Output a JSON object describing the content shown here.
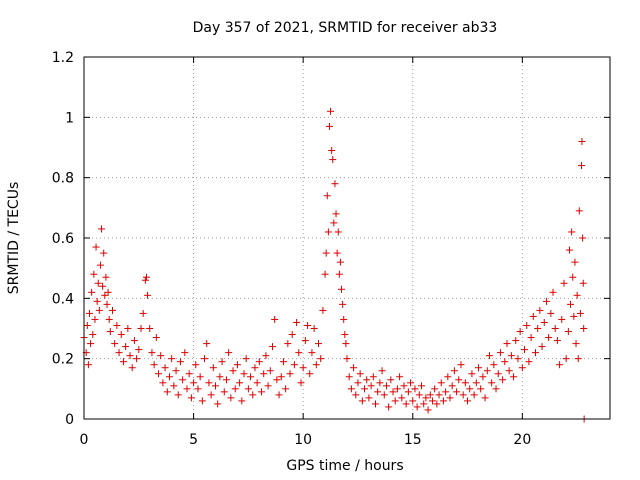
{
  "chart_data": {
    "type": "scatter",
    "title": "Day 357 of 2021, SRMTID for receiver ab33",
    "xlabel": "GPS time / hours",
    "ylabel": "SRMTID / TECUs",
    "xlim": [
      0,
      24
    ],
    "ylim": [
      0,
      1.2
    ],
    "xticks": [
      0,
      5,
      10,
      15,
      20
    ],
    "xtick_labels": [
      "0",
      "5",
      "10",
      "15",
      "20"
    ],
    "yticks": [
      0,
      0.2,
      0.4,
      0.6,
      0.8,
      1.0,
      1.2
    ],
    "ytick_labels": [
      "0",
      "0.2",
      "0.4",
      "0.6",
      "0.8",
      "1",
      "1.2"
    ],
    "grid": true,
    "marker": "+",
    "color": "#e00000",
    "series": [
      {
        "name": "SRMTID",
        "points": [
          [
            0.0,
            0.27
          ],
          [
            0.1,
            0.22
          ],
          [
            0.15,
            0.31
          ],
          [
            0.2,
            0.18
          ],
          [
            0.25,
            0.35
          ],
          [
            0.3,
            0.25
          ],
          [
            0.35,
            0.42
          ],
          [
            0.4,
            0.28
          ],
          [
            0.45,
            0.48
          ],
          [
            0.5,
            0.33
          ],
          [
            0.55,
            0.57
          ],
          [
            0.6,
            0.39
          ],
          [
            0.65,
            0.45
          ],
          [
            0.7,
            0.36
          ],
          [
            0.75,
            0.51
          ],
          [
            0.8,
            0.63
          ],
          [
            0.85,
            0.44
          ],
          [
            0.9,
            0.55
          ],
          [
            0.95,
            0.41
          ],
          [
            1.0,
            0.47
          ],
          [
            1.05,
            0.38
          ],
          [
            1.1,
            0.42
          ],
          [
            1.15,
            0.33
          ],
          [
            1.2,
            0.29
          ],
          [
            1.3,
            0.36
          ],
          [
            1.4,
            0.25
          ],
          [
            1.5,
            0.31
          ],
          [
            1.6,
            0.22
          ],
          [
            1.7,
            0.28
          ],
          [
            1.8,
            0.19
          ],
          [
            1.9,
            0.24
          ],
          [
            2.0,
            0.3
          ],
          [
            2.1,
            0.21
          ],
          [
            2.2,
            0.17
          ],
          [
            2.3,
            0.26
          ],
          [
            2.4,
            0.2
          ],
          [
            2.5,
            0.23
          ],
          [
            2.6,
            0.3
          ],
          [
            2.7,
            0.35
          ],
          [
            2.8,
            0.46
          ],
          [
            2.85,
            0.47
          ],
          [
            2.9,
            0.41
          ],
          [
            3.0,
            0.3
          ],
          [
            3.1,
            0.22
          ],
          [
            3.2,
            0.18
          ],
          [
            3.3,
            0.27
          ],
          [
            3.4,
            0.15
          ],
          [
            3.5,
            0.21
          ],
          [
            3.6,
            0.12
          ],
          [
            3.7,
            0.17
          ],
          [
            3.8,
            0.09
          ],
          [
            3.9,
            0.14
          ],
          [
            4.0,
            0.2
          ],
          [
            4.1,
            0.11
          ],
          [
            4.2,
            0.16
          ],
          [
            4.3,
            0.08
          ],
          [
            4.4,
            0.19
          ],
          [
            4.5,
            0.13
          ],
          [
            4.6,
            0.22
          ],
          [
            4.7,
            0.1
          ],
          [
            4.8,
            0.15
          ],
          [
            4.9,
            0.07
          ],
          [
            5.0,
            0.12
          ],
          [
            5.1,
            0.18
          ],
          [
            5.2,
            0.1
          ],
          [
            5.3,
            0.14
          ],
          [
            5.4,
            0.06
          ],
          [
            5.5,
            0.2
          ],
          [
            5.6,
            0.25
          ],
          [
            5.7,
            0.12
          ],
          [
            5.8,
            0.08
          ],
          [
            5.9,
            0.17
          ],
          [
            6.0,
            0.11
          ],
          [
            6.1,
            0.05
          ],
          [
            6.2,
            0.14
          ],
          [
            6.3,
            0.19
          ],
          [
            6.4,
            0.09
          ],
          [
            6.5,
            0.13
          ],
          [
            6.6,
            0.22
          ],
          [
            6.7,
            0.07
          ],
          [
            6.8,
            0.16
          ],
          [
            6.9,
            0.1
          ],
          [
            7.0,
            0.18
          ],
          [
            7.1,
            0.12
          ],
          [
            7.2,
            0.06
          ],
          [
            7.3,
            0.15
          ],
          [
            7.4,
            0.2
          ],
          [
            7.5,
            0.1
          ],
          [
            7.6,
            0.14
          ],
          [
            7.7,
            0.08
          ],
          [
            7.8,
            0.17
          ],
          [
            7.9,
            0.12
          ],
          [
            8.0,
            0.19
          ],
          [
            8.1,
            0.09
          ],
          [
            8.2,
            0.15
          ],
          [
            8.3,
            0.21
          ],
          [
            8.4,
            0.11
          ],
          [
            8.5,
            0.16
          ],
          [
            8.6,
            0.24
          ],
          [
            8.7,
            0.33
          ],
          [
            8.8,
            0.13
          ],
          [
            8.9,
            0.08
          ],
          [
            9.0,
            0.14
          ],
          [
            9.1,
            0.19
          ],
          [
            9.2,
            0.1
          ],
          [
            9.3,
            0.25
          ],
          [
            9.4,
            0.15
          ],
          [
            9.5,
            0.28
          ],
          [
            9.6,
            0.18
          ],
          [
            9.7,
            0.32
          ],
          [
            9.8,
            0.22
          ],
          [
            9.9,
            0.12
          ],
          [
            10.0,
            0.17
          ],
          [
            10.1,
            0.26
          ],
          [
            10.2,
            0.31
          ],
          [
            10.3,
            0.15
          ],
          [
            10.4,
            0.22
          ],
          [
            10.5,
            0.3
          ],
          [
            10.6,
            0.18
          ],
          [
            10.7,
            0.25
          ],
          [
            10.8,
            0.2
          ],
          [
            10.9,
            0.36
          ],
          [
            11.0,
            0.48
          ],
          [
            11.05,
            0.55
          ],
          [
            11.1,
            0.74
          ],
          [
            11.15,
            0.62
          ],
          [
            11.2,
            0.97
          ],
          [
            11.25,
            1.02
          ],
          [
            11.3,
            0.89
          ],
          [
            11.35,
            0.86
          ],
          [
            11.4,
            0.65
          ],
          [
            11.45,
            0.78
          ],
          [
            11.5,
            0.68
          ],
          [
            11.55,
            0.55
          ],
          [
            11.6,
            0.62
          ],
          [
            11.65,
            0.48
          ],
          [
            11.7,
            0.52
          ],
          [
            11.75,
            0.43
          ],
          [
            11.8,
            0.38
          ],
          [
            11.85,
            0.33
          ],
          [
            11.9,
            0.28
          ],
          [
            11.95,
            0.25
          ],
          [
            12.0,
            0.2
          ],
          [
            12.1,
            0.14
          ],
          [
            12.2,
            0.1
          ],
          [
            12.3,
            0.17
          ],
          [
            12.4,
            0.08
          ],
          [
            12.5,
            0.12
          ],
          [
            12.6,
            0.15
          ],
          [
            12.7,
            0.06
          ],
          [
            12.8,
            0.1
          ],
          [
            12.9,
            0.13
          ],
          [
            13.0,
            0.07
          ],
          [
            13.1,
            0.11
          ],
          [
            13.2,
            0.14
          ],
          [
            13.3,
            0.05
          ],
          [
            13.4,
            0.09
          ],
          [
            13.5,
            0.12
          ],
          [
            13.6,
            0.16
          ],
          [
            13.7,
            0.08
          ],
          [
            13.8,
            0.11
          ],
          [
            13.9,
            0.04
          ],
          [
            14.0,
            0.13
          ],
          [
            14.1,
            0.09
          ],
          [
            14.2,
            0.06
          ],
          [
            14.3,
            0.1
          ],
          [
            14.4,
            0.14
          ],
          [
            14.5,
            0.07
          ],
          [
            14.6,
            0.11
          ],
          [
            14.7,
            0.05
          ],
          [
            14.8,
            0.09
          ],
          [
            14.9,
            0.12
          ],
          [
            15.0,
            0.06
          ],
          [
            15.1,
            0.1
          ],
          [
            15.2,
            0.04
          ],
          [
            15.3,
            0.08
          ],
          [
            15.4,
            0.11
          ],
          [
            15.5,
            0.05
          ],
          [
            15.6,
            0.07
          ],
          [
            15.7,
            0.03
          ],
          [
            15.8,
            0.08
          ],
          [
            15.9,
            0.06
          ],
          [
            16.0,
            0.1
          ],
          [
            16.1,
            0.05
          ],
          [
            16.2,
            0.08
          ],
          [
            16.3,
            0.12
          ],
          [
            16.4,
            0.06
          ],
          [
            16.5,
            0.09
          ],
          [
            16.6,
            0.14
          ],
          [
            16.7,
            0.07
          ],
          [
            16.8,
            0.11
          ],
          [
            16.9,
            0.16
          ],
          [
            17.0,
            0.09
          ],
          [
            17.1,
            0.13
          ],
          [
            17.2,
            0.18
          ],
          [
            17.3,
            0.08
          ],
          [
            17.4,
            0.12
          ],
          [
            17.5,
            0.06
          ],
          [
            17.6,
            0.1
          ],
          [
            17.7,
            0.15
          ],
          [
            17.8,
            0.08
          ],
          [
            17.9,
            0.12
          ],
          [
            18.0,
            0.17
          ],
          [
            18.1,
            0.1
          ],
          [
            18.2,
            0.14
          ],
          [
            18.3,
            0.07
          ],
          [
            18.4,
            0.16
          ],
          [
            18.5,
            0.21
          ],
          [
            18.6,
            0.12
          ],
          [
            18.7,
            0.18
          ],
          [
            18.8,
            0.1
          ],
          [
            18.9,
            0.15
          ],
          [
            19.0,
            0.22
          ],
          [
            19.1,
            0.13
          ],
          [
            19.2,
            0.19
          ],
          [
            19.3,
            0.25
          ],
          [
            19.4,
            0.16
          ],
          [
            19.5,
            0.21
          ],
          [
            19.6,
            0.14
          ],
          [
            19.7,
            0.26
          ],
          [
            19.8,
            0.2
          ],
          [
            19.9,
            0.29
          ],
          [
            20.0,
            0.17
          ],
          [
            20.1,
            0.23
          ],
          [
            20.2,
            0.31
          ],
          [
            20.3,
            0.19
          ],
          [
            20.4,
            0.27
          ],
          [
            20.5,
            0.34
          ],
          [
            20.6,
            0.22
          ],
          [
            20.7,
            0.3
          ],
          [
            20.8,
            0.36
          ],
          [
            20.9,
            0.24
          ],
          [
            21.0,
            0.32
          ],
          [
            21.1,
            0.39
          ],
          [
            21.2,
            0.27
          ],
          [
            21.3,
            0.35
          ],
          [
            21.4,
            0.42
          ],
          [
            21.5,
            0.3
          ],
          [
            21.6,
            0.26
          ],
          [
            21.7,
            0.18
          ],
          [
            21.8,
            0.33
          ],
          [
            21.9,
            0.45
          ],
          [
            22.0,
            0.2
          ],
          [
            22.1,
            0.29
          ],
          [
            22.15,
            0.56
          ],
          [
            22.2,
            0.38
          ],
          [
            22.25,
            0.62
          ],
          [
            22.3,
            0.47
          ],
          [
            22.35,
            0.34
          ],
          [
            22.4,
            0.52
          ],
          [
            22.45,
            0.25
          ],
          [
            22.5,
            0.41
          ],
          [
            22.55,
            0.2
          ],
          [
            22.6,
            0.69
          ],
          [
            22.65,
            0.35
          ],
          [
            22.7,
            0.84
          ],
          [
            22.72,
            0.92
          ],
          [
            22.75,
            0.6
          ],
          [
            22.78,
            0.45
          ],
          [
            22.8,
            0.3
          ],
          [
            22.82,
            0.0
          ]
        ]
      }
    ]
  }
}
